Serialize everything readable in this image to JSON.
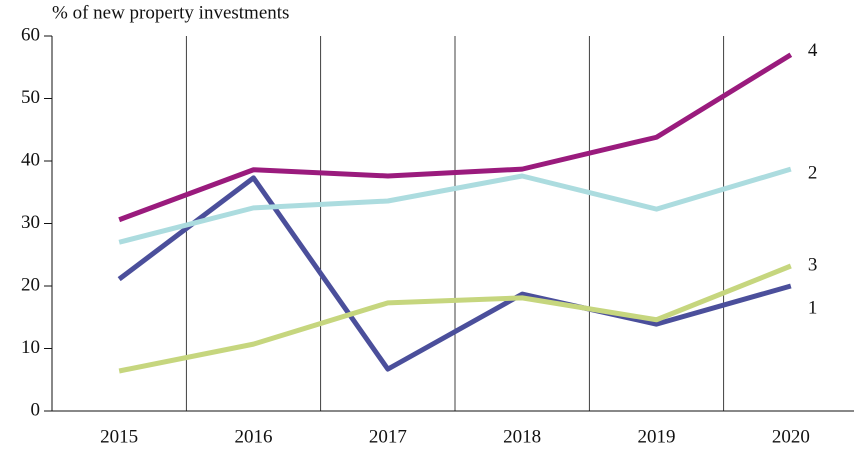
{
  "chart_data": {
    "type": "line",
    "y_axis_label": "% of new property investments",
    "categories": [
      "2015",
      "2016",
      "2017",
      "2018",
      "2019",
      "2020"
    ],
    "series": [
      {
        "name": "1",
        "color": "#4b4f9b",
        "values": [
          21.1,
          37.3,
          6.7,
          18.7,
          13.9,
          20
        ]
      },
      {
        "name": "2",
        "color": "#acdcdf",
        "values": [
          27,
          32.5,
          33.6,
          37.6,
          32.3,
          38.7
        ]
      },
      {
        "name": "3",
        "color": "#c6d67e",
        "values": [
          6.4,
          10.7,
          17.3,
          18.1,
          14.6,
          23.2
        ]
      },
      {
        "name": "4",
        "color": "#9a1b7d",
        "values": [
          30.6,
          38.6,
          37.6,
          38.7,
          43.8,
          57
        ]
      }
    ],
    "ylim": [
      0,
      60
    ],
    "yticks": [
      0,
      10,
      20,
      30,
      40,
      50,
      60
    ]
  }
}
